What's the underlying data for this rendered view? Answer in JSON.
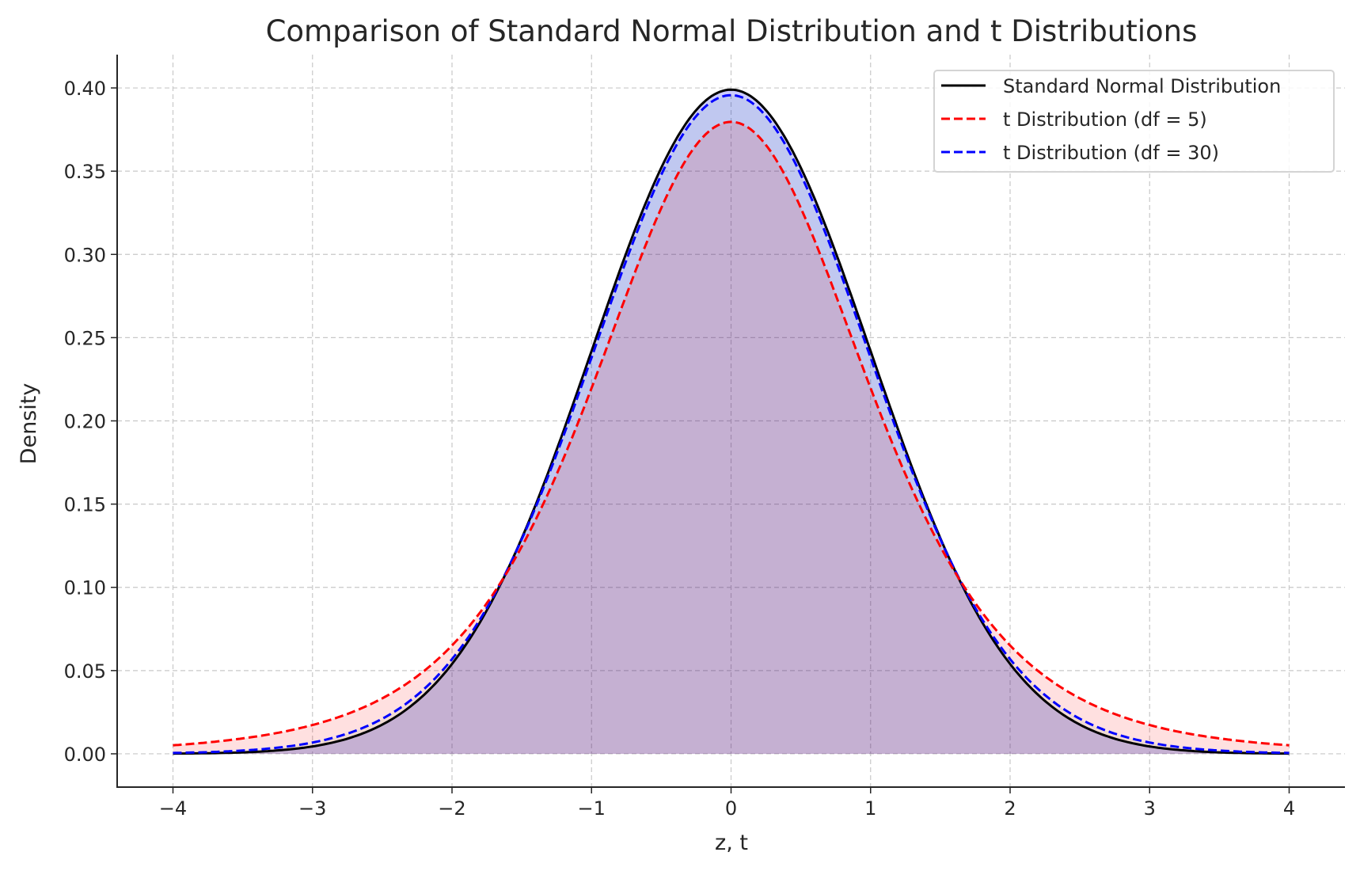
{
  "chart_data": {
    "type": "line",
    "title": "Comparison of Standard Normal Distribution and t Distributions",
    "xlabel": "z, t",
    "ylabel": "Density",
    "xlim": [
      -4.4,
      4.4
    ],
    "ylim": [
      -0.02,
      0.42
    ],
    "x_range": [
      -4,
      4
    ],
    "xticks": [
      -4,
      -3,
      -2,
      -1,
      0,
      1,
      2,
      3,
      4
    ],
    "xtick_labels": [
      "−4",
      "−3",
      "−2",
      "−1",
      "0",
      "1",
      "2",
      "3",
      "4"
    ],
    "yticks": [
      0,
      0.05,
      0.1,
      0.15,
      0.2,
      0.25,
      0.3,
      0.35,
      0.4
    ],
    "ytick_labels": [
      "0.00",
      "0.05",
      "0.10",
      "0.15",
      "0.20",
      "0.25",
      "0.30",
      "0.35",
      "0.40"
    ],
    "grid": true,
    "legend_position": "top-right",
    "series": [
      {
        "name": "Standard Normal Distribution",
        "dist": "normal",
        "color": "#000000",
        "style": "solid",
        "fill": "#0000ff",
        "peak": 0.399
      },
      {
        "name": "t Distribution (df = 5)",
        "dist": "t",
        "df": 5,
        "color": "#ff0000",
        "style": "dashed",
        "fill": "#ff0000",
        "peak": 0.38
      },
      {
        "name": "t Distribution (df = 30)",
        "dist": "t",
        "df": 30,
        "color": "#0000ff",
        "style": "dashed",
        "fill": "#008000",
        "peak": 0.396
      }
    ]
  }
}
